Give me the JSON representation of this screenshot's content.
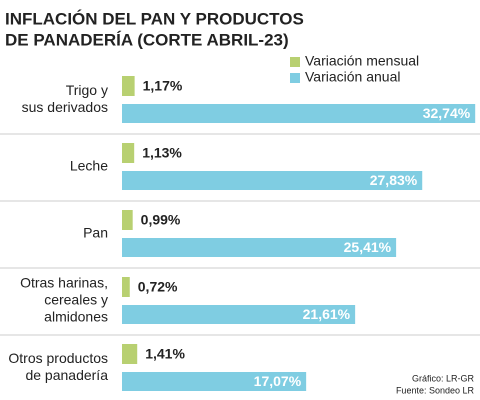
{
  "chart_data": {
    "type": "bar",
    "orientation": "horizontal",
    "title": [
      "INFLACIÓN DEL PAN Y PRODUCTOS",
      "DE PANADERÍA (CORTE ABRIL-23)"
    ],
    "categories": [
      [
        "Trigo y",
        "sus derivados"
      ],
      [
        "Leche"
      ],
      [
        "Pan"
      ],
      [
        "Otras harinas,",
        "cereales y",
        "almidones"
      ],
      [
        "Otros productos",
        "de panadería"
      ]
    ],
    "series": [
      {
        "name": "Variación mensual",
        "color": "#b8d071",
        "values": [
          1.17,
          1.13,
          0.99,
          0.72,
          1.41
        ],
        "value_labels": [
          "1,17%",
          "1,13%",
          "0,99%",
          "0,72%",
          "1,41%"
        ]
      },
      {
        "name": "Variación anual",
        "color": "#7fcde2",
        "values": [
          32.74,
          27.83,
          25.41,
          21.61,
          17.07
        ],
        "value_labels": [
          "32,74%",
          "27,83%",
          "25,41%",
          "21,61%",
          "17,07%"
        ]
      }
    ],
    "xlim": [
      0,
      33
    ],
    "notes": [
      "Gráfico: LR-GR",
      "Fuente: Sondeo LR"
    ]
  }
}
